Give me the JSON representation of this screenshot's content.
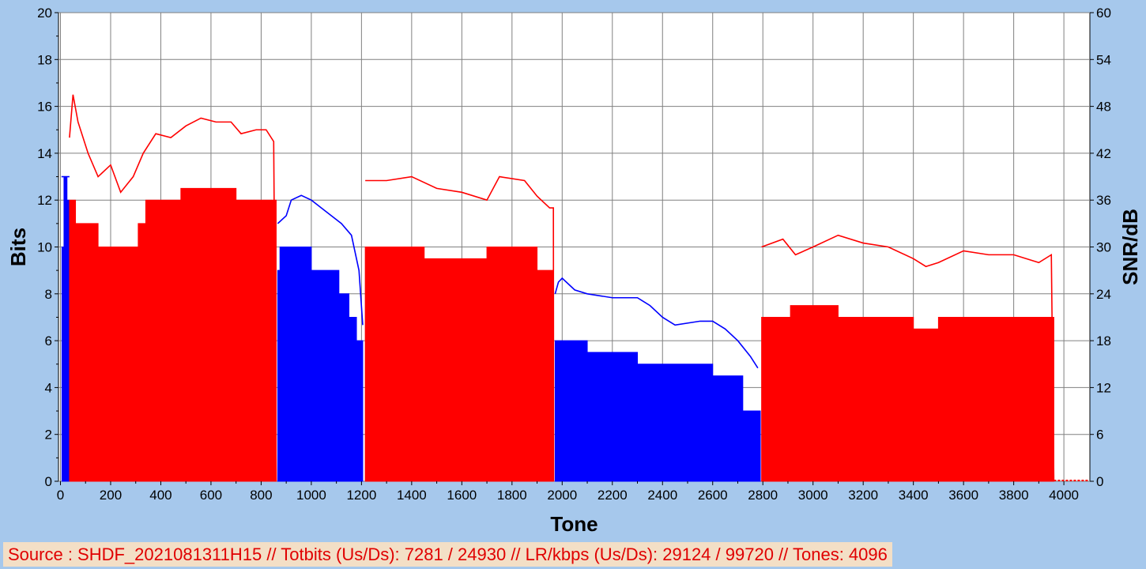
{
  "colors": {
    "background": "#a6c8ec",
    "plot_area": "#ffffff",
    "grid": "#808080",
    "upstream": "#0000ff",
    "downstream": "#ff0000",
    "footer_background": "#f3dfc6",
    "footer_text": "#e00000"
  },
  "footer": {
    "text": "Source : SHDF_2021081311H15 // Totbits (Us/Ds): 7281 / 24930 // LR/kbps (Us/Ds): 29124 / 99720 // Tones: 4096"
  },
  "chart_data": {
    "type": "bar",
    "title": "",
    "xlabel": "Tone",
    "ylabel": "Bits",
    "y2label": "SNR/dB",
    "xlim": [
      0,
      4096
    ],
    "ylim": [
      0,
      20
    ],
    "y2lim": [
      0,
      60
    ],
    "x_ticks": [
      0,
      200,
      400,
      600,
      800,
      1000,
      1200,
      1400,
      1600,
      1800,
      2000,
      2200,
      2400,
      2600,
      2800,
      3000,
      3200,
      3400,
      3600,
      3800,
      4000
    ],
    "y_ticks": [
      0,
      2,
      4,
      6,
      8,
      10,
      12,
      14,
      16,
      18,
      20
    ],
    "y2_ticks": [
      0,
      6,
      12,
      18,
      24,
      30,
      36,
      42,
      48,
      54,
      60
    ],
    "grid": true,
    "legend": "none",
    "series": [
      {
        "direction": "upstream",
        "role": "bits",
        "color": "#0000ff",
        "segments": [
          [
            [
              6,
              10
            ],
            [
              14,
              13
            ],
            [
              26,
              12
            ],
            [
              34,
              0
            ]
          ],
          [
            [
              866,
              9
            ],
            [
              875,
              10
            ],
            [
              1000,
              9
            ],
            [
              1110,
              8
            ],
            [
              1150,
              7
            ],
            [
              1180,
              6
            ],
            [
              1205,
              0
            ]
          ],
          [
            [
              1972,
              6
            ],
            [
              2100,
              5.5
            ],
            [
              2300,
              5
            ],
            [
              2600,
              4.5
            ],
            [
              2720,
              3
            ],
            [
              2790,
              0
            ]
          ]
        ]
      },
      {
        "direction": "downstream",
        "role": "bits",
        "color": "#ff0000",
        "segments": [
          [
            [
              36,
              12
            ],
            [
              60,
              11
            ],
            [
              150,
              10
            ],
            [
              310,
              11
            ],
            [
              340,
              12
            ],
            [
              480,
              12.5
            ],
            [
              700,
              12
            ],
            [
              860,
              0
            ]
          ],
          [
            [
              1215,
              10
            ],
            [
              1450,
              9.5
            ],
            [
              1580,
              9.5
            ],
            [
              1700,
              10
            ],
            [
              1900,
              9
            ],
            [
              1965,
              0
            ]
          ],
          [
            [
              2795,
              7
            ],
            [
              2910,
              7.5
            ],
            [
              3100,
              7
            ],
            [
              3400,
              6.5
            ],
            [
              3500,
              7
            ],
            [
              3960,
              0
            ]
          ]
        ]
      },
      {
        "direction": "upstream",
        "role": "snr",
        "color": "#0000ff",
        "segments": [
          [
            [
              4,
              39
            ],
            [
              36,
              39
            ]
          ],
          [
            [
              866,
              33
            ],
            [
              900,
              34
            ],
            [
              920,
              36
            ],
            [
              960,
              36.6
            ],
            [
              1000,
              36
            ],
            [
              1040,
              35
            ],
            [
              1080,
              34
            ],
            [
              1120,
              33
            ],
            [
              1160,
              31.5
            ],
            [
              1190,
              27
            ],
            [
              1205,
              20
            ]
          ],
          [
            [
              1972,
              24
            ],
            [
              1985,
              25.5
            ],
            [
              2000,
              26
            ],
            [
              2050,
              24.5
            ],
            [
              2100,
              24
            ],
            [
              2200,
              23.5
            ],
            [
              2300,
              23.5
            ],
            [
              2350,
              22.5
            ],
            [
              2400,
              21
            ],
            [
              2450,
              20
            ],
            [
              2550,
              20.5
            ],
            [
              2600,
              20.5
            ],
            [
              2650,
              19.5
            ],
            [
              2700,
              18
            ],
            [
              2750,
              16
            ],
            [
              2780,
              14.5
            ]
          ]
        ]
      },
      {
        "direction": "downstream",
        "role": "snr",
        "color": "#ff0000",
        "segments": [
          [
            [
              36,
              44
            ],
            [
              50,
              49.5
            ],
            [
              70,
              46
            ],
            [
              110,
              42
            ],
            [
              150,
              39
            ],
            [
              200,
              40.5
            ],
            [
              240,
              37
            ],
            [
              290,
              39
            ],
            [
              330,
              42
            ],
            [
              380,
              44.5
            ],
            [
              440,
              44
            ],
            [
              500,
              45.5
            ],
            [
              560,
              46.5
            ],
            [
              620,
              46
            ],
            [
              680,
              46
            ],
            [
              720,
              44.5
            ],
            [
              780,
              45
            ],
            [
              820,
              45
            ],
            [
              850,
              43.5
            ],
            [
              860,
              0
            ]
          ],
          [
            [
              1215,
              38.5
            ],
            [
              1300,
              38.5
            ],
            [
              1400,
              39
            ],
            [
              1500,
              37.5
            ],
            [
              1600,
              37
            ],
            [
              1700,
              36
            ],
            [
              1750,
              39
            ],
            [
              1850,
              38.5
            ],
            [
              1900,
              36.5
            ],
            [
              1950,
              35
            ],
            [
              1965,
              35
            ],
            [
              1966,
              0
            ]
          ],
          [
            [
              2795,
              30
            ],
            [
              2880,
              31
            ],
            [
              2930,
              29
            ],
            [
              3000,
              30
            ],
            [
              3100,
              31.5
            ],
            [
              3200,
              30.5
            ],
            [
              3300,
              30
            ],
            [
              3400,
              28.5
            ],
            [
              3450,
              27.5
            ],
            [
              3500,
              28
            ],
            [
              3600,
              29.5
            ],
            [
              3700,
              29
            ],
            [
              3800,
              29
            ],
            [
              3900,
              28
            ],
            [
              3950,
              29
            ],
            [
              3960,
              0
            ]
          ]
        ]
      }
    ]
  }
}
